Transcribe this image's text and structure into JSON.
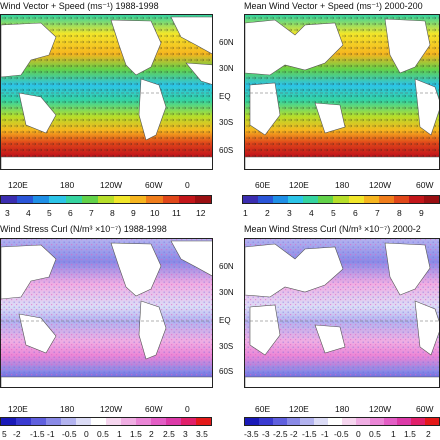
{
  "panels": {
    "speed_left": {
      "title": "Wind Vector + Speed (ms⁻¹)   1988-1998"
    },
    "speed_right": {
      "title": "Mean Wind Vector + Speed (ms⁻¹)   2000-200"
    },
    "curl_left": {
      "title": "Wind Stress Curl (N/m³ ×10⁻⁷)   1988-1998"
    },
    "curl_right": {
      "title": "Mean Wind Stress Curl (N/m³ ×10⁻⁷)   2000-2"
    }
  },
  "lat_labels": [
    "60N",
    "30N",
    "EQ",
    "30S",
    "60S"
  ],
  "lon_labels_left": [
    "120E",
    "180",
    "120W",
    "60W",
    "0"
  ],
  "lon_labels_right": [
    "60E",
    "120E",
    "180",
    "120W",
    "60W"
  ],
  "speed_colorbar": {
    "labels_left": [
      "3",
      "4",
      "5",
      "6",
      "7",
      "8",
      "9",
      "10",
      "11",
      "12"
    ],
    "labels_right": [
      "1",
      "2",
      "3",
      "4",
      "5",
      "6",
      "7",
      "8",
      "9"
    ],
    "colors": [
      "#3b2db0",
      "#2a55d8",
      "#1f8fe6",
      "#2cc4e8",
      "#35d4a0",
      "#62d24a",
      "#b6de2a",
      "#f1e62a",
      "#f6b51f",
      "#f07d1b",
      "#e0471a",
      "#c3161a",
      "#9a0f12"
    ]
  },
  "curl_colorbar": {
    "labels_left": [
      "5",
      "-2",
      "-1.5",
      "-1",
      "-0.5",
      "0",
      "0.5",
      "1",
      "1.5",
      "2",
      "2.5",
      "3",
      "3.5"
    ],
    "labels_right": [
      "-3.5",
      "-3",
      "-2.5",
      "-2",
      "-1.5",
      "-1",
      "-0.5",
      "0",
      "0.5",
      "1",
      "1.5",
      "2"
    ],
    "colors": [
      "#1a1ab8",
      "#3a3ad0",
      "#6060de",
      "#8a8ae6",
      "#b3b3ef",
      "#dcdcf6",
      "#ffffff",
      "#f6d6ef",
      "#f0aee3",
      "#ea86d6",
      "#e35ec5",
      "#dc3aa8",
      "#e0206a",
      "#e41a1a"
    ]
  },
  "colors": {
    "land": "#ffffff",
    "coast": "#555555",
    "eq_line": "#666666"
  }
}
